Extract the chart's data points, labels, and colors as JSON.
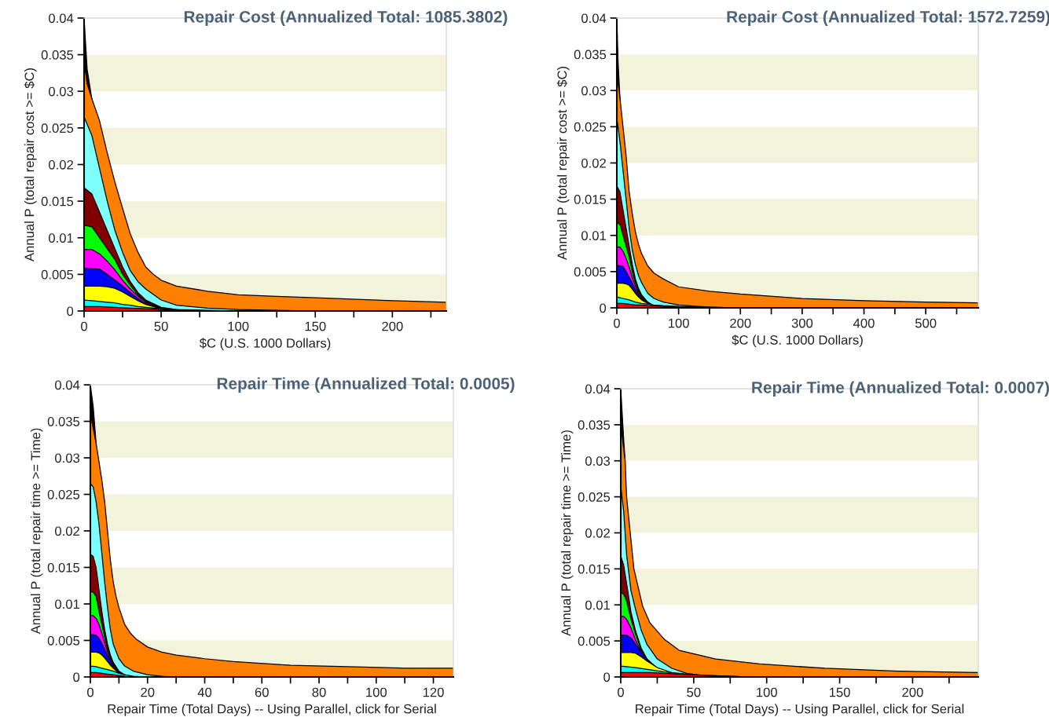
{
  "chart_data": [
    {
      "type": "area",
      "title": "Repair Cost (Annualized Total: 1085.3802)",
      "xlabel": "$C (U.S. 1000 Dollars)",
      "ylabel": "Annual P (total repair cost >= $C)",
      "xlim": [
        0,
        235
      ],
      "ylim": [
        0,
        0.04
      ],
      "xticks": [
        0,
        {
          "value": 25,
          "label": null
        },
        50,
        {
          "value": 75,
          "label": null
        },
        100,
        {
          "value": 125,
          "label": null
        },
        150,
        {
          "value": 175,
          "label": null
        },
        200,
        {
          "value": 225,
          "label": null
        }
      ],
      "yticks": [
        0,
        0.005,
        0.01,
        0.015,
        0.02,
        0.025,
        0.03,
        0.035,
        0.04
      ],
      "grid": false,
      "legend": false,
      "bands": [
        {
          "axis": "y",
          "from": 0,
          "to": 0.005,
          "color": "#f3f3dc"
        },
        {
          "axis": "y",
          "from": 0.01,
          "to": 0.015,
          "color": "#f3f3dc"
        },
        {
          "axis": "y",
          "from": 0.02,
          "to": 0.025,
          "color": "#f3f3dc"
        },
        {
          "axis": "y",
          "from": 0.03,
          "to": 0.035,
          "color": "#f3f3dc"
        }
      ],
      "series": [
        {
          "color": "#000000",
          "x": [
            0,
            2,
            5
          ],
          "values": [
            0.04,
            0.033,
            0.029
          ]
        },
        {
          "color": "#ff8000",
          "x": [
            0,
            2,
            5,
            10,
            15,
            20,
            25,
            30,
            35,
            40,
            45,
            50,
            60,
            80,
            100,
            125,
            150,
            200,
            235
          ],
          "values": [
            0.034,
            0.031,
            0.029,
            0.026,
            0.0216,
            0.0176,
            0.014,
            0.0105,
            0.008,
            0.006,
            0.005,
            0.0042,
            0.0034,
            0.0027,
            0.0022,
            0.002,
            0.0018,
            0.0014,
            0.0012
          ]
        },
        {
          "color": "#80ffff",
          "x": [
            0,
            5,
            10,
            15,
            20,
            25,
            30,
            35,
            40,
            50,
            60,
            80,
            100,
            125,
            150
          ],
          "values": [
            0.0265,
            0.024,
            0.0195,
            0.015,
            0.011,
            0.008,
            0.0055,
            0.004,
            0.003,
            0.0015,
            0.0008,
            0.0004,
            0.0002,
            0.0001,
            0
          ]
        },
        {
          "color": "#800000",
          "x": [
            0,
            5,
            10,
            15,
            20,
            25,
            30,
            35,
            40,
            50,
            60,
            70
          ],
          "values": [
            0.0168,
            0.016,
            0.0135,
            0.011,
            0.0085,
            0.006,
            0.004,
            0.0025,
            0.0015,
            0.0005,
            0.0002,
            0
          ]
        },
        {
          "color": "#00ff00",
          "x": [
            0,
            5,
            10,
            15,
            20,
            25,
            30,
            35,
            40,
            50,
            60,
            70
          ],
          "values": [
            0.0117,
            0.0115,
            0.01,
            0.0085,
            0.007,
            0.005,
            0.0035,
            0.0022,
            0.0013,
            0.0004,
            0.0001,
            0
          ]
        },
        {
          "color": "#ff00ff",
          "x": [
            0,
            5,
            10,
            15,
            20,
            25,
            30,
            35,
            40,
            50,
            60,
            70
          ],
          "values": [
            0.0084,
            0.0084,
            0.0078,
            0.0068,
            0.0056,
            0.0042,
            0.003,
            0.002,
            0.0012,
            0.0004,
            0.0001,
            0
          ]
        },
        {
          "color": "#0000ff",
          "x": [
            0,
            5,
            10,
            15,
            20,
            25,
            30,
            35,
            40,
            50,
            60,
            70
          ],
          "values": [
            0.0058,
            0.0058,
            0.0057,
            0.005,
            0.0042,
            0.0034,
            0.0025,
            0.0017,
            0.001,
            0.0003,
            0.0001,
            0
          ]
        },
        {
          "color": "#ffff00",
          "x": [
            0,
            5,
            10,
            15,
            20,
            25,
            30,
            35,
            40,
            50,
            60,
            70
          ],
          "values": [
            0.0034,
            0.0034,
            0.0034,
            0.0033,
            0.0031,
            0.0026,
            0.002,
            0.0014,
            0.0009,
            0.0003,
            0.0001,
            0
          ]
        },
        {
          "color": "#00ffff",
          "x": [
            0,
            5,
            10,
            15,
            20,
            25,
            30,
            35,
            40,
            50,
            60,
            80,
            100
          ],
          "values": [
            0.0015,
            0.0014,
            0.0013,
            0.0012,
            0.0011,
            0.0009,
            0.0008,
            0.0006,
            0.0005,
            0.0003,
            0.0002,
            0.0001,
            0
          ]
        },
        {
          "color": "#ff0000",
          "x": [
            0,
            10,
            20,
            30,
            40,
            50,
            60,
            70
          ],
          "values": [
            0.0006,
            0.0006,
            0.0005,
            0.0004,
            0.0003,
            0.0002,
            0.0001,
            0
          ]
        }
      ]
    },
    {
      "type": "area",
      "title": "Repair Cost (Annualized Total: 1572.7259)",
      "xlabel": "$C (U.S. 1000 Dollars)",
      "ylabel": "Annual P (total repair cost >= $C)",
      "xlim": [
        0,
        585
      ],
      "ylim": [
        0,
        0.04
      ],
      "xticks": [
        0,
        {
          "value": 50,
          "label": null
        },
        100,
        {
          "value": 150,
          "label": null
        },
        200,
        {
          "value": 250,
          "label": null
        },
        300,
        {
          "value": 350,
          "label": null
        },
        400,
        {
          "value": 450,
          "label": null
        },
        500,
        {
          "value": 550,
          "label": null
        }
      ],
      "yticks": [
        0,
        0.005,
        0.01,
        0.015,
        0.02,
        0.025,
        0.03,
        0.035,
        0.04
      ],
      "grid": false,
      "legend": false,
      "bands": [
        {
          "axis": "y",
          "from": 0,
          "to": 0.005,
          "color": "#f3f3dc"
        },
        {
          "axis": "y",
          "from": 0.01,
          "to": 0.015,
          "color": "#f3f3dc"
        },
        {
          "axis": "y",
          "from": 0.02,
          "to": 0.025,
          "color": "#f3f3dc"
        },
        {
          "axis": "y",
          "from": 0.03,
          "to": 0.035,
          "color": "#f3f3dc"
        }
      ],
      "series": [
        {
          "color": "#000000",
          "x": [
            0,
            2,
            5
          ],
          "values": [
            0.04,
            0.034,
            0.029
          ]
        },
        {
          "color": "#ff8000",
          "x": [
            0,
            2,
            5,
            10,
            15,
            20,
            25,
            30,
            35,
            40,
            50,
            60,
            75,
            100,
            150,
            200,
            300,
            400,
            500,
            585
          ],
          "values": [
            0.033,
            0.031,
            0.029,
            0.025,
            0.021,
            0.016,
            0.013,
            0.0105,
            0.0088,
            0.0075,
            0.0058,
            0.0048,
            0.004,
            0.0029,
            0.0023,
            0.0019,
            0.0013,
            0.001,
            0.0008,
            0.0007
          ]
        },
        {
          "color": "#80ffff",
          "x": [
            0,
            2,
            5,
            10,
            15,
            20,
            25,
            30,
            35,
            40,
            50,
            60,
            75,
            100,
            150,
            200
          ],
          "values": [
            0.026,
            0.025,
            0.023,
            0.019,
            0.015,
            0.011,
            0.008,
            0.006,
            0.0045,
            0.0035,
            0.002,
            0.0013,
            0.0008,
            0.0004,
            0.0001,
            0
          ]
        },
        {
          "color": "#800000",
          "x": [
            0,
            2,
            5,
            10,
            15,
            20,
            25,
            30,
            35,
            40,
            50,
            60,
            75,
            100
          ],
          "values": [
            0.0168,
            0.0165,
            0.016,
            0.0135,
            0.011,
            0.0085,
            0.006,
            0.004,
            0.0027,
            0.0018,
            0.0008,
            0.0003,
            0.0001,
            0
          ]
        },
        {
          "color": "#00ff00",
          "x": [
            0,
            2,
            5,
            10,
            15,
            20,
            25,
            30,
            35,
            40,
            50,
            60,
            75,
            100
          ],
          "values": [
            0.0117,
            0.0117,
            0.0115,
            0.01,
            0.0085,
            0.007,
            0.005,
            0.0035,
            0.0023,
            0.0015,
            0.0006,
            0.0002,
            0.0001,
            0
          ]
        },
        {
          "color": "#ff00ff",
          "x": [
            0,
            2,
            5,
            10,
            15,
            20,
            25,
            30,
            35,
            40,
            50,
            60,
            75,
            100
          ],
          "values": [
            0.0084,
            0.0084,
            0.0084,
            0.0078,
            0.0068,
            0.0056,
            0.0042,
            0.003,
            0.002,
            0.0013,
            0.0005,
            0.0002,
            0.0001,
            0
          ]
        },
        {
          "color": "#0000ff",
          "x": [
            0,
            2,
            5,
            10,
            15,
            20,
            25,
            30,
            35,
            40,
            50,
            60,
            75,
            100
          ],
          "values": [
            0.0058,
            0.0058,
            0.0058,
            0.0057,
            0.005,
            0.0042,
            0.0034,
            0.0025,
            0.0018,
            0.0012,
            0.0005,
            0.0002,
            0.0001,
            0
          ]
        },
        {
          "color": "#ffff00",
          "x": [
            0,
            2,
            5,
            10,
            15,
            20,
            25,
            30,
            35,
            40,
            50,
            60,
            75,
            100
          ],
          "values": [
            0.0034,
            0.0034,
            0.0034,
            0.0034,
            0.0033,
            0.0031,
            0.0026,
            0.002,
            0.0015,
            0.0011,
            0.0006,
            0.0003,
            0.0001,
            0
          ]
        },
        {
          "color": "#00ffff",
          "x": [
            0,
            5,
            10,
            20,
            30,
            40,
            50,
            60,
            75,
            100,
            150,
            200
          ],
          "values": [
            0.0015,
            0.0014,
            0.0013,
            0.0011,
            0.0008,
            0.0006,
            0.0005,
            0.0004,
            0.0003,
            0.0002,
            0.0001,
            0
          ]
        },
        {
          "color": "#ff0000",
          "x": [
            0,
            10,
            20,
            30,
            40,
            50,
            75,
            100,
            125
          ],
          "values": [
            0.0006,
            0.0006,
            0.0005,
            0.0004,
            0.0004,
            0.0003,
            0.0002,
            0.0001,
            0
          ]
        }
      ]
    },
    {
      "type": "area",
      "title": "Repair Time (Annualized Total: 0.0005)",
      "xlabel": "Repair Time (Total Days) -- Using Parallel, click for Serial",
      "ylabel": "Annual P (total repair time >= Time)",
      "xlim": [
        0,
        127
      ],
      "ylim": [
        0,
        0.04
      ],
      "xticks": [
        0,
        {
          "value": 10,
          "label": null
        },
        20,
        {
          "value": 30,
          "label": null
        },
        40,
        {
          "value": 50,
          "label": null
        },
        60,
        {
          "value": 70,
          "label": null
        },
        80,
        {
          "value": 90,
          "label": null
        },
        100,
        {
          "value": 110,
          "label": null
        },
        120
      ],
      "yticks": [
        0,
        0.005,
        0.01,
        0.015,
        0.02,
        0.025,
        0.03,
        0.035,
        0.04
      ],
      "grid": false,
      "legend": false,
      "bands": [
        {
          "axis": "y",
          "from": 0,
          "to": 0.005,
          "color": "#f3f3dc"
        },
        {
          "axis": "y",
          "from": 0.01,
          "to": 0.015,
          "color": "#f3f3dc"
        },
        {
          "axis": "y",
          "from": 0.02,
          "to": 0.025,
          "color": "#f3f3dc"
        },
        {
          "axis": "y",
          "from": 0.03,
          "to": 0.035,
          "color": "#f3f3dc"
        }
      ],
      "series": [
        {
          "color": "#000000",
          "x": [
            0,
            1,
            2
          ],
          "values": [
            0.04,
            0.037,
            0.032
          ]
        },
        {
          "color": "#ff8000",
          "x": [
            0,
            2,
            4,
            5,
            6,
            7,
            8,
            9,
            10,
            12,
            14,
            16,
            20,
            25,
            30,
            40,
            50,
            70,
            90,
            110,
            127
          ],
          "values": [
            0.036,
            0.032,
            0.027,
            0.024,
            0.02,
            0.016,
            0.013,
            0.011,
            0.0095,
            0.0072,
            0.006,
            0.0052,
            0.0041,
            0.0034,
            0.003,
            0.0025,
            0.0021,
            0.0016,
            0.0014,
            0.0012,
            0.0012
          ]
        },
        {
          "color": "#80ffff",
          "x": [
            0,
            1,
            2,
            3,
            4,
            5,
            6,
            7,
            8,
            10,
            12,
            15,
            20,
            25,
            30
          ],
          "values": [
            0.0265,
            0.026,
            0.024,
            0.021,
            0.017,
            0.013,
            0.0095,
            0.0065,
            0.0045,
            0.0025,
            0.0015,
            0.0008,
            0.0003,
            0.0001,
            0
          ]
        },
        {
          "color": "#800000",
          "x": [
            0,
            1,
            2,
            3,
            4,
            5,
            6,
            7,
            8,
            10,
            12,
            15
          ],
          "values": [
            0.0168,
            0.0165,
            0.015,
            0.012,
            0.009,
            0.0065,
            0.0045,
            0.003,
            0.002,
            0.0008,
            0.0003,
            0
          ]
        },
        {
          "color": "#00ff00",
          "x": [
            0,
            1,
            2,
            3,
            4,
            5,
            6,
            7,
            8,
            10,
            12,
            15
          ],
          "values": [
            0.0117,
            0.0116,
            0.011,
            0.009,
            0.0072,
            0.0055,
            0.0038,
            0.0026,
            0.0017,
            0.0006,
            0.0002,
            0
          ]
        },
        {
          "color": "#ff00ff",
          "x": [
            0,
            1,
            2,
            3,
            4,
            5,
            6,
            7,
            8,
            10,
            12,
            15
          ],
          "values": [
            0.0084,
            0.0084,
            0.008,
            0.0072,
            0.006,
            0.0047,
            0.0034,
            0.0024,
            0.0016,
            0.0006,
            0.0002,
            0
          ]
        },
        {
          "color": "#0000ff",
          "x": [
            0,
            1,
            2,
            3,
            4,
            5,
            6,
            7,
            8,
            10,
            12,
            15
          ],
          "values": [
            0.0058,
            0.0058,
            0.0057,
            0.0053,
            0.0046,
            0.0038,
            0.0029,
            0.0021,
            0.0014,
            0.0006,
            0.0002,
            0
          ]
        },
        {
          "color": "#ffff00",
          "x": [
            0,
            1,
            2,
            3,
            4,
            5,
            6,
            7,
            8,
            10,
            12,
            15
          ],
          "values": [
            0.0034,
            0.0034,
            0.0034,
            0.0033,
            0.003,
            0.0026,
            0.0021,
            0.0016,
            0.0012,
            0.0005,
            0.0002,
            0
          ]
        },
        {
          "color": "#00ffff",
          "x": [
            0,
            2,
            4,
            6,
            8,
            10,
            12,
            15,
            20
          ],
          "values": [
            0.0015,
            0.0014,
            0.0012,
            0.001,
            0.0008,
            0.0005,
            0.0003,
            0.0001,
            0
          ]
        },
        {
          "color": "#ff0000",
          "x": [
            0,
            2,
            4,
            6,
            8,
            10,
            12,
            15
          ],
          "values": [
            0.0006,
            0.0006,
            0.0005,
            0.0004,
            0.0003,
            0.0002,
            0.0001,
            0
          ]
        }
      ]
    },
    {
      "type": "area",
      "title": "Repair Time (Annualized Total: 0.0007)",
      "xlabel": "Repair Time (Total Days) -- Using Parallel, click for Serial",
      "ylabel": "Annual P (total repair time >= Time)",
      "xlim": [
        0,
        245
      ],
      "ylim": [
        0,
        0.04
      ],
      "xticks": [
        0,
        {
          "value": 25,
          "label": null
        },
        50,
        {
          "value": 75,
          "label": null
        },
        100,
        {
          "value": 125,
          "label": null
        },
        150,
        {
          "value": 175,
          "label": null
        },
        200,
        {
          "value": 225,
          "label": null
        }
      ],
      "yticks": [
        0,
        0.005,
        0.01,
        0.015,
        0.02,
        0.025,
        0.03,
        0.035,
        0.04
      ],
      "grid": false,
      "legend": false,
      "bands": [
        {
          "axis": "y",
          "from": 0,
          "to": 0.005,
          "color": "#f3f3dc"
        },
        {
          "axis": "y",
          "from": 0.01,
          "to": 0.015,
          "color": "#f3f3dc"
        },
        {
          "axis": "y",
          "from": 0.02,
          "to": 0.025,
          "color": "#f3f3dc"
        },
        {
          "axis": "y",
          "from": 0.03,
          "to": 0.035,
          "color": "#f3f3dc"
        }
      ],
      "series": [
        {
          "color": "#000000",
          "x": [
            0,
            2,
            3
          ],
          "values": [
            0.04,
            0.033,
            0.03
          ]
        },
        {
          "color": "#ff8000",
          "x": [
            0,
            3,
            4,
            6,
            9,
            15,
            20,
            30,
            40,
            65,
            95,
            140,
            190,
            245
          ],
          "values": [
            0.035,
            0.03,
            0.025,
            0.021,
            0.015,
            0.0098,
            0.0075,
            0.0052,
            0.0037,
            0.0025,
            0.0018,
            0.0012,
            0.0008,
            0.0006
          ]
        },
        {
          "color": "#80ffff",
          "x": [
            0,
            2,
            4,
            7,
            10,
            14,
            18,
            25,
            35,
            45,
            60,
            80
          ],
          "values": [
            0.0265,
            0.023,
            0.017,
            0.012,
            0.0095,
            0.0065,
            0.0045,
            0.0025,
            0.0012,
            0.0005,
            0.0001,
            0
          ]
        },
        {
          "color": "#800000",
          "x": [
            0,
            2,
            4,
            7,
            10,
            14,
            18,
            25,
            35,
            45
          ],
          "values": [
            0.0168,
            0.0155,
            0.013,
            0.009,
            0.0065,
            0.004,
            0.0025,
            0.0012,
            0.0004,
            0
          ]
        },
        {
          "color": "#00ff00",
          "x": [
            0,
            2,
            4,
            7,
            10,
            14,
            18,
            25,
            35,
            45
          ],
          "values": [
            0.0117,
            0.0115,
            0.0105,
            0.008,
            0.006,
            0.0038,
            0.0024,
            0.0011,
            0.0004,
            0
          ]
        },
        {
          "color": "#ff00ff",
          "x": [
            0,
            2,
            4,
            7,
            10,
            14,
            18,
            25,
            35,
            45
          ],
          "values": [
            0.0084,
            0.0084,
            0.008,
            0.0068,
            0.0052,
            0.0035,
            0.0022,
            0.0011,
            0.0004,
            0
          ]
        },
        {
          "color": "#0000ff",
          "x": [
            0,
            2,
            4,
            7,
            10,
            14,
            18,
            25,
            35,
            45
          ],
          "values": [
            0.0058,
            0.0058,
            0.0058,
            0.0054,
            0.0046,
            0.0034,
            0.0024,
            0.0012,
            0.0004,
            0
          ]
        },
        {
          "color": "#ffff00",
          "x": [
            0,
            4,
            7,
            10,
            14,
            18,
            25,
            35,
            45,
            55
          ],
          "values": [
            0.0034,
            0.0034,
            0.0034,
            0.0033,
            0.0028,
            0.0022,
            0.0013,
            0.0006,
            0.0002,
            0
          ]
        },
        {
          "color": "#00ffff",
          "x": [
            0,
            10,
            20,
            30,
            40,
            50,
            60,
            75,
            90
          ],
          "values": [
            0.0015,
            0.0013,
            0.001,
            0.0007,
            0.0005,
            0.0003,
            0.0002,
            0.0001,
            0
          ]
        },
        {
          "color": "#ff0000",
          "x": [
            0,
            20,
            40,
            60,
            75,
            90
          ],
          "values": [
            0.0006,
            0.0006,
            0.0004,
            0.0002,
            0.0001,
            0
          ]
        }
      ]
    }
  ]
}
